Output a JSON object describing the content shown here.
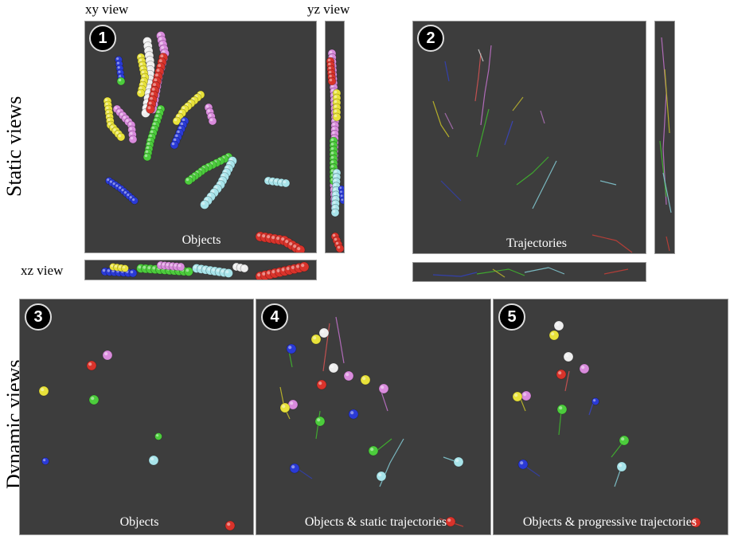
{
  "section_labels": {
    "static": "Static views",
    "dynamic": "Dynamic views"
  },
  "view_labels": {
    "xy": "xy view",
    "yz": "yz view",
    "xz": "xz view"
  },
  "panels": [
    {
      "id": "1",
      "label": "Objects"
    },
    {
      "id": "2",
      "label": "Trajectories"
    },
    {
      "id": "3",
      "label": "Objects"
    },
    {
      "id": "4",
      "label": "Objects & static trajectories"
    },
    {
      "id": "5",
      "label": "Objects & progressive trajectories"
    }
  ],
  "colors": {
    "background": "#3d3d3d",
    "red": "#d9332b",
    "white": "#eeeeee",
    "yellow": "#e8e23a",
    "pink": "#d98bdc",
    "green": "#4ccc3c",
    "blue": "#2a3ad6",
    "cyan": "#a8e4ea"
  }
}
